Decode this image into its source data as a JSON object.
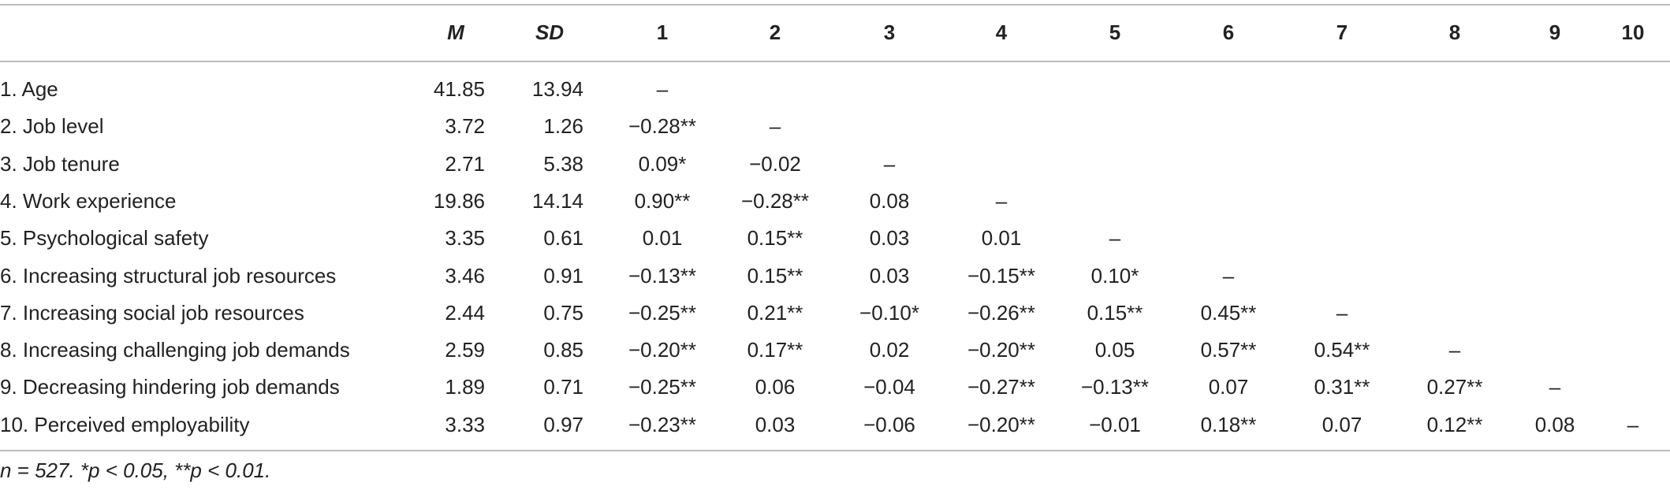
{
  "table": {
    "columns": [
      "M",
      "SD",
      "1",
      "2",
      "3",
      "4",
      "5",
      "6",
      "7",
      "8",
      "9",
      "10"
    ],
    "rows": [
      {
        "label": "1. Age",
        "m": "41.85",
        "sd": "13.94",
        "correlations": [
          "–"
        ]
      },
      {
        "label": "2. Job level",
        "m": "3.72",
        "sd": "1.26",
        "correlations": [
          "−0.28**",
          "–"
        ]
      },
      {
        "label": "3. Job tenure",
        "m": "2.71",
        "sd": "5.38",
        "correlations": [
          "0.09*",
          "−0.02",
          "–"
        ]
      },
      {
        "label": "4. Work experience",
        "m": "19.86",
        "sd": "14.14",
        "correlations": [
          "0.90**",
          "−0.28**",
          "0.08",
          "–"
        ]
      },
      {
        "label": "5. Psychological safety",
        "m": "3.35",
        "sd": "0.61",
        "correlations": [
          "0.01",
          "0.15**",
          "0.03",
          "0.01",
          "–"
        ]
      },
      {
        "label": "6. Increasing structural job resources",
        "m": "3.46",
        "sd": "0.91",
        "correlations": [
          "−0.13**",
          "0.15**",
          "0.03",
          "−0.15**",
          "0.10*",
          "–"
        ]
      },
      {
        "label": "7. Increasing social job resources",
        "m": "2.44",
        "sd": "0.75",
        "correlations": [
          "−0.25**",
          "0.21**",
          "−0.10*",
          "−0.26**",
          "0.15**",
          "0.45**",
          "–"
        ]
      },
      {
        "label": "8. Increasing challenging job demands",
        "m": "2.59",
        "sd": "0.85",
        "correlations": [
          "−0.20**",
          "0.17**",
          "0.02",
          "−0.20**",
          "0.05",
          "0.57**",
          "0.54**",
          "–"
        ]
      },
      {
        "label": "9. Decreasing hindering job demands",
        "m": "1.89",
        "sd": "0.71",
        "correlations": [
          "−0.25**",
          "0.06",
          "−0.04",
          "−0.27**",
          "−0.13**",
          "0.07",
          "0.31**",
          "0.27**",
          "–"
        ]
      },
      {
        "label": "10. Perceived employability",
        "m": "3.33",
        "sd": "0.97",
        "correlations": [
          "−0.23**",
          "0.03",
          "−0.06",
          "−0.20**",
          "−0.01",
          "0.18**",
          "0.07",
          "0.12**",
          "0.08",
          "–"
        ]
      }
    ],
    "footnote": "n = 527. *p < 0.05, **p < 0.01."
  }
}
